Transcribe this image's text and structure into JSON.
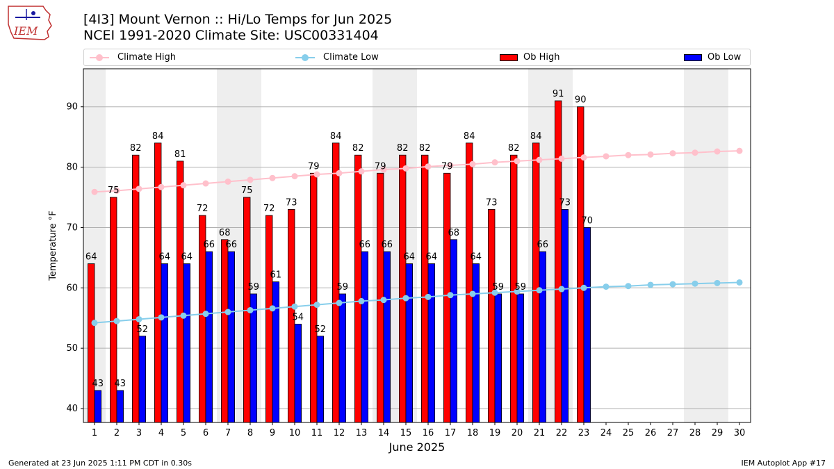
{
  "header": {
    "logo_text": "IEM",
    "title": "[4I3] Mount Vernon :: Hi/Lo Temps for Jun 2025",
    "subtitle": "NCEI 1991-2020 Climate Site: USC00331404"
  },
  "legend": {
    "climate_high": "Climate High",
    "climate_low": "Climate Low",
    "ob_high": "Ob High",
    "ob_low": "Ob Low"
  },
  "footer": {
    "left": "Generated at 23 Jun 2025 1:11 PM CDT in 0.30s",
    "right": "IEM Autoplot App #17"
  },
  "colors": {
    "ob_high": "#ff0000",
    "ob_low": "#0000ff",
    "climate_high": "#ffc0cb",
    "climate_low": "#87ceeb",
    "weekend_shade": "#eeeeee",
    "grid": "#b0b0b0"
  },
  "chart_data": {
    "type": "bar",
    "xlabel": "June 2025",
    "ylabel": "Temperature °F",
    "ylim": [
      37.7,
      96.3
    ],
    "yticks": [
      40,
      50,
      60,
      70,
      80,
      90
    ],
    "grid": "horizontal",
    "legend_position": "top",
    "x": [
      1,
      2,
      3,
      4,
      5,
      6,
      7,
      8,
      9,
      10,
      11,
      12,
      13,
      14,
      15,
      16,
      17,
      18,
      19,
      20,
      21,
      22,
      23,
      24,
      25,
      26,
      27,
      28,
      29,
      30
    ],
    "weekend_days": [
      1,
      7,
      8,
      14,
      15,
      21,
      22,
      28,
      29
    ],
    "series": [
      {
        "name": "Ob High",
        "kind": "bar",
        "values": [
          64,
          75,
          82,
          84,
          81,
          72,
          68,
          75,
          72,
          73,
          79,
          84,
          82,
          79,
          82,
          82,
          79,
          84,
          73,
          82,
          84,
          91,
          90,
          null,
          null,
          null,
          null,
          null,
          null,
          null
        ]
      },
      {
        "name": "Ob Low",
        "kind": "bar",
        "values": [
          43,
          43,
          52,
          64,
          64,
          66,
          66,
          59,
          61,
          54,
          52,
          59,
          66,
          66,
          64,
          64,
          68,
          64,
          59,
          59,
          66,
          73,
          70,
          null,
          null,
          null,
          null,
          null,
          null,
          null
        ]
      },
      {
        "name": "Climate High",
        "kind": "line",
        "values": [
          75.9,
          76.1,
          76.4,
          76.7,
          77.0,
          77.3,
          77.6,
          77.9,
          78.2,
          78.5,
          78.8,
          79.0,
          79.3,
          79.6,
          79.8,
          80.1,
          80.3,
          80.5,
          80.8,
          81.0,
          81.2,
          81.4,
          81.6,
          81.8,
          82.0,
          82.1,
          82.3,
          82.4,
          82.6,
          82.7
        ]
      },
      {
        "name": "Climate Low",
        "kind": "line",
        "values": [
          54.2,
          54.5,
          54.8,
          55.1,
          55.4,
          55.7,
          56.0,
          56.3,
          56.6,
          56.9,
          57.2,
          57.5,
          57.8,
          58.0,
          58.3,
          58.5,
          58.8,
          59.0,
          59.2,
          59.4,
          59.6,
          59.8,
          60.0,
          60.2,
          60.3,
          60.5,
          60.6,
          60.7,
          60.8,
          60.9
        ]
      }
    ]
  }
}
